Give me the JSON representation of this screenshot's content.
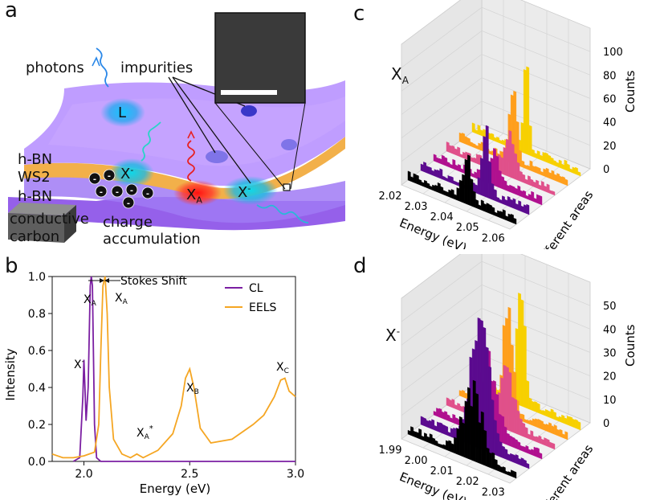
{
  "panels": {
    "a": {
      "letter": "a",
      "labels": {
        "photons": "photons",
        "impurities": "impurities",
        "hbn_top": "h-BN",
        "ws2": "WS2",
        "hbn_bottom": "h-BN",
        "conductive": "conductive",
        "carbon": "carbon",
        "charge": "charge",
        "accumulation": "accumulation",
        "L": "L",
        "X_minus_left": "X",
        "X_minus_left_sup": "-",
        "XA_main": "X",
        "XA_sub": "A",
        "X_minus_right": "X",
        "X_minus_right_sup": "-"
      }
    },
    "b": {
      "letter": "b",
      "stokes_label": "Stokes Shift",
      "peak_labels": {
        "xa_cl": "X",
        "xa_cl_sub": "A",
        "xa_eels": "X",
        "xa_eels_sub": "A",
        "xminus": "X",
        "xminus_sup": "-",
        "xb": "X",
        "xb_sub": "B",
        "xc": "X",
        "xc_sub": "C",
        "xastar": "X",
        "xastar_sub": "A",
        "xastar_sup": "*"
      }
    },
    "c": {
      "letter": "c",
      "title": "X",
      "title_sub": "A",
      "xlabel": "Energy (eV)",
      "ylabel": "Different areas",
      "zlabel": "Counts",
      "x_ticks": [
        "2.02",
        "2.03",
        "2.04",
        "2.05",
        "2.06"
      ],
      "z_ticks": [
        "0",
        "20",
        "40",
        "60",
        "80",
        "100"
      ]
    },
    "d": {
      "letter": "d",
      "title": "X",
      "title_sup": "-",
      "xlabel": "Energy (eV)",
      "ylabel": "Different areas",
      "zlabel": "Counts",
      "x_ticks": [
        "1.99",
        "2.00",
        "2.01",
        "2.02",
        "2.03"
      ],
      "z_ticks": [
        "0",
        "10",
        "20",
        "30",
        "40",
        "50"
      ]
    }
  },
  "colors": {
    "cl": "#7b1fa2",
    "eels": "#f5a623",
    "hbn": "#9b6cff",
    "ws2": "#f2b04a",
    "series": [
      "#000000",
      "#5b0a8f",
      "#b0108f",
      "#e0508a",
      "#ff9f1c",
      "#f7d000"
    ]
  },
  "chart_data": {
    "type": "line",
    "xlabel": "Energy (eV)",
    "ylabel": "Intensity",
    "xlim": [
      1.85,
      3.0
    ],
    "ylim": [
      0,
      1.0
    ],
    "x_ticks": [
      "2.0",
      "2.5",
      "3.0"
    ],
    "y_ticks": [
      "0.0",
      "0.2",
      "0.4",
      "0.6",
      "0.8",
      "1.0"
    ],
    "legend_position": "top-right",
    "series": [
      {
        "name": "CL",
        "x": [
          1.95,
          1.98,
          1.995,
          2.0,
          2.005,
          2.01,
          2.02,
          2.03,
          2.035,
          2.04,
          2.05,
          2.06,
          2.08,
          2.2,
          2.5,
          3.0
        ],
        "y": [
          0.0,
          0.02,
          0.35,
          0.55,
          0.4,
          0.22,
          0.4,
          0.95,
          1.0,
          0.95,
          0.2,
          0.02,
          0.0,
          0.0,
          0.0,
          0.0
        ]
      },
      {
        "name": "EELS",
        "x": [
          1.85,
          1.9,
          1.95,
          2.0,
          2.05,
          2.07,
          2.08,
          2.09,
          2.1,
          2.11,
          2.12,
          2.14,
          2.18,
          2.22,
          2.25,
          2.28,
          2.35,
          2.42,
          2.46,
          2.48,
          2.5,
          2.52,
          2.55,
          2.6,
          2.7,
          2.8,
          2.85,
          2.9,
          2.93,
          2.95,
          2.97,
          3.0
        ],
        "y": [
          0.04,
          0.02,
          0.02,
          0.03,
          0.05,
          0.2,
          0.6,
          0.95,
          1.0,
          0.8,
          0.4,
          0.12,
          0.04,
          0.02,
          0.04,
          0.02,
          0.06,
          0.15,
          0.3,
          0.45,
          0.5,
          0.4,
          0.18,
          0.1,
          0.12,
          0.2,
          0.25,
          0.35,
          0.44,
          0.45,
          0.38,
          0.35
        ]
      }
    ]
  }
}
